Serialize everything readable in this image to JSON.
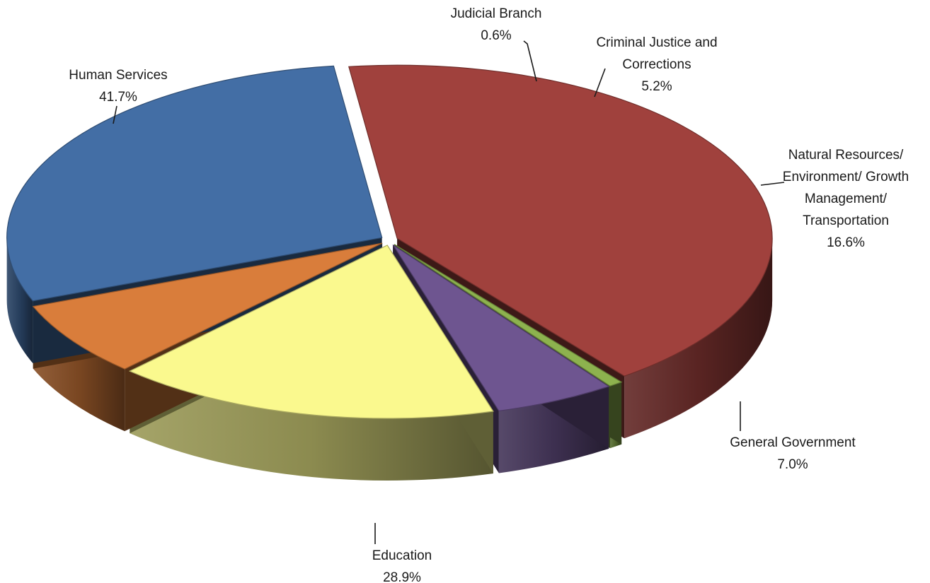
{
  "chart_data": {
    "type": "pie",
    "style": "3d-exploded",
    "title": "",
    "legend": "none",
    "slices": [
      {
        "label": [
          "Human Services"
        ],
        "value": 41.7,
        "value_label": "41.7%",
        "color": "#A0413D"
      },
      {
        "label": [
          "Judicial Branch"
        ],
        "value": 0.6,
        "value_label": "0.6%",
        "color": "#8DB24E"
      },
      {
        "label": [
          "Criminal Justice and",
          "Corrections"
        ],
        "value": 5.2,
        "value_label": "5.2%",
        "color": "#6E5590"
      },
      {
        "label": [
          "Natural Resources/",
          "Environment/ Growth",
          "Management/",
          "Transportation"
        ],
        "value": 16.6,
        "value_label": "16.6%",
        "color": "#FAF98E"
      },
      {
        "label": [
          "General Government"
        ],
        "value": 7.0,
        "value_label": "7.0%",
        "color": "#D97D3B"
      },
      {
        "label": [
          "Education"
        ],
        "value": 28.9,
        "value_label": "28.9%",
        "color": "#436EA5"
      }
    ]
  }
}
